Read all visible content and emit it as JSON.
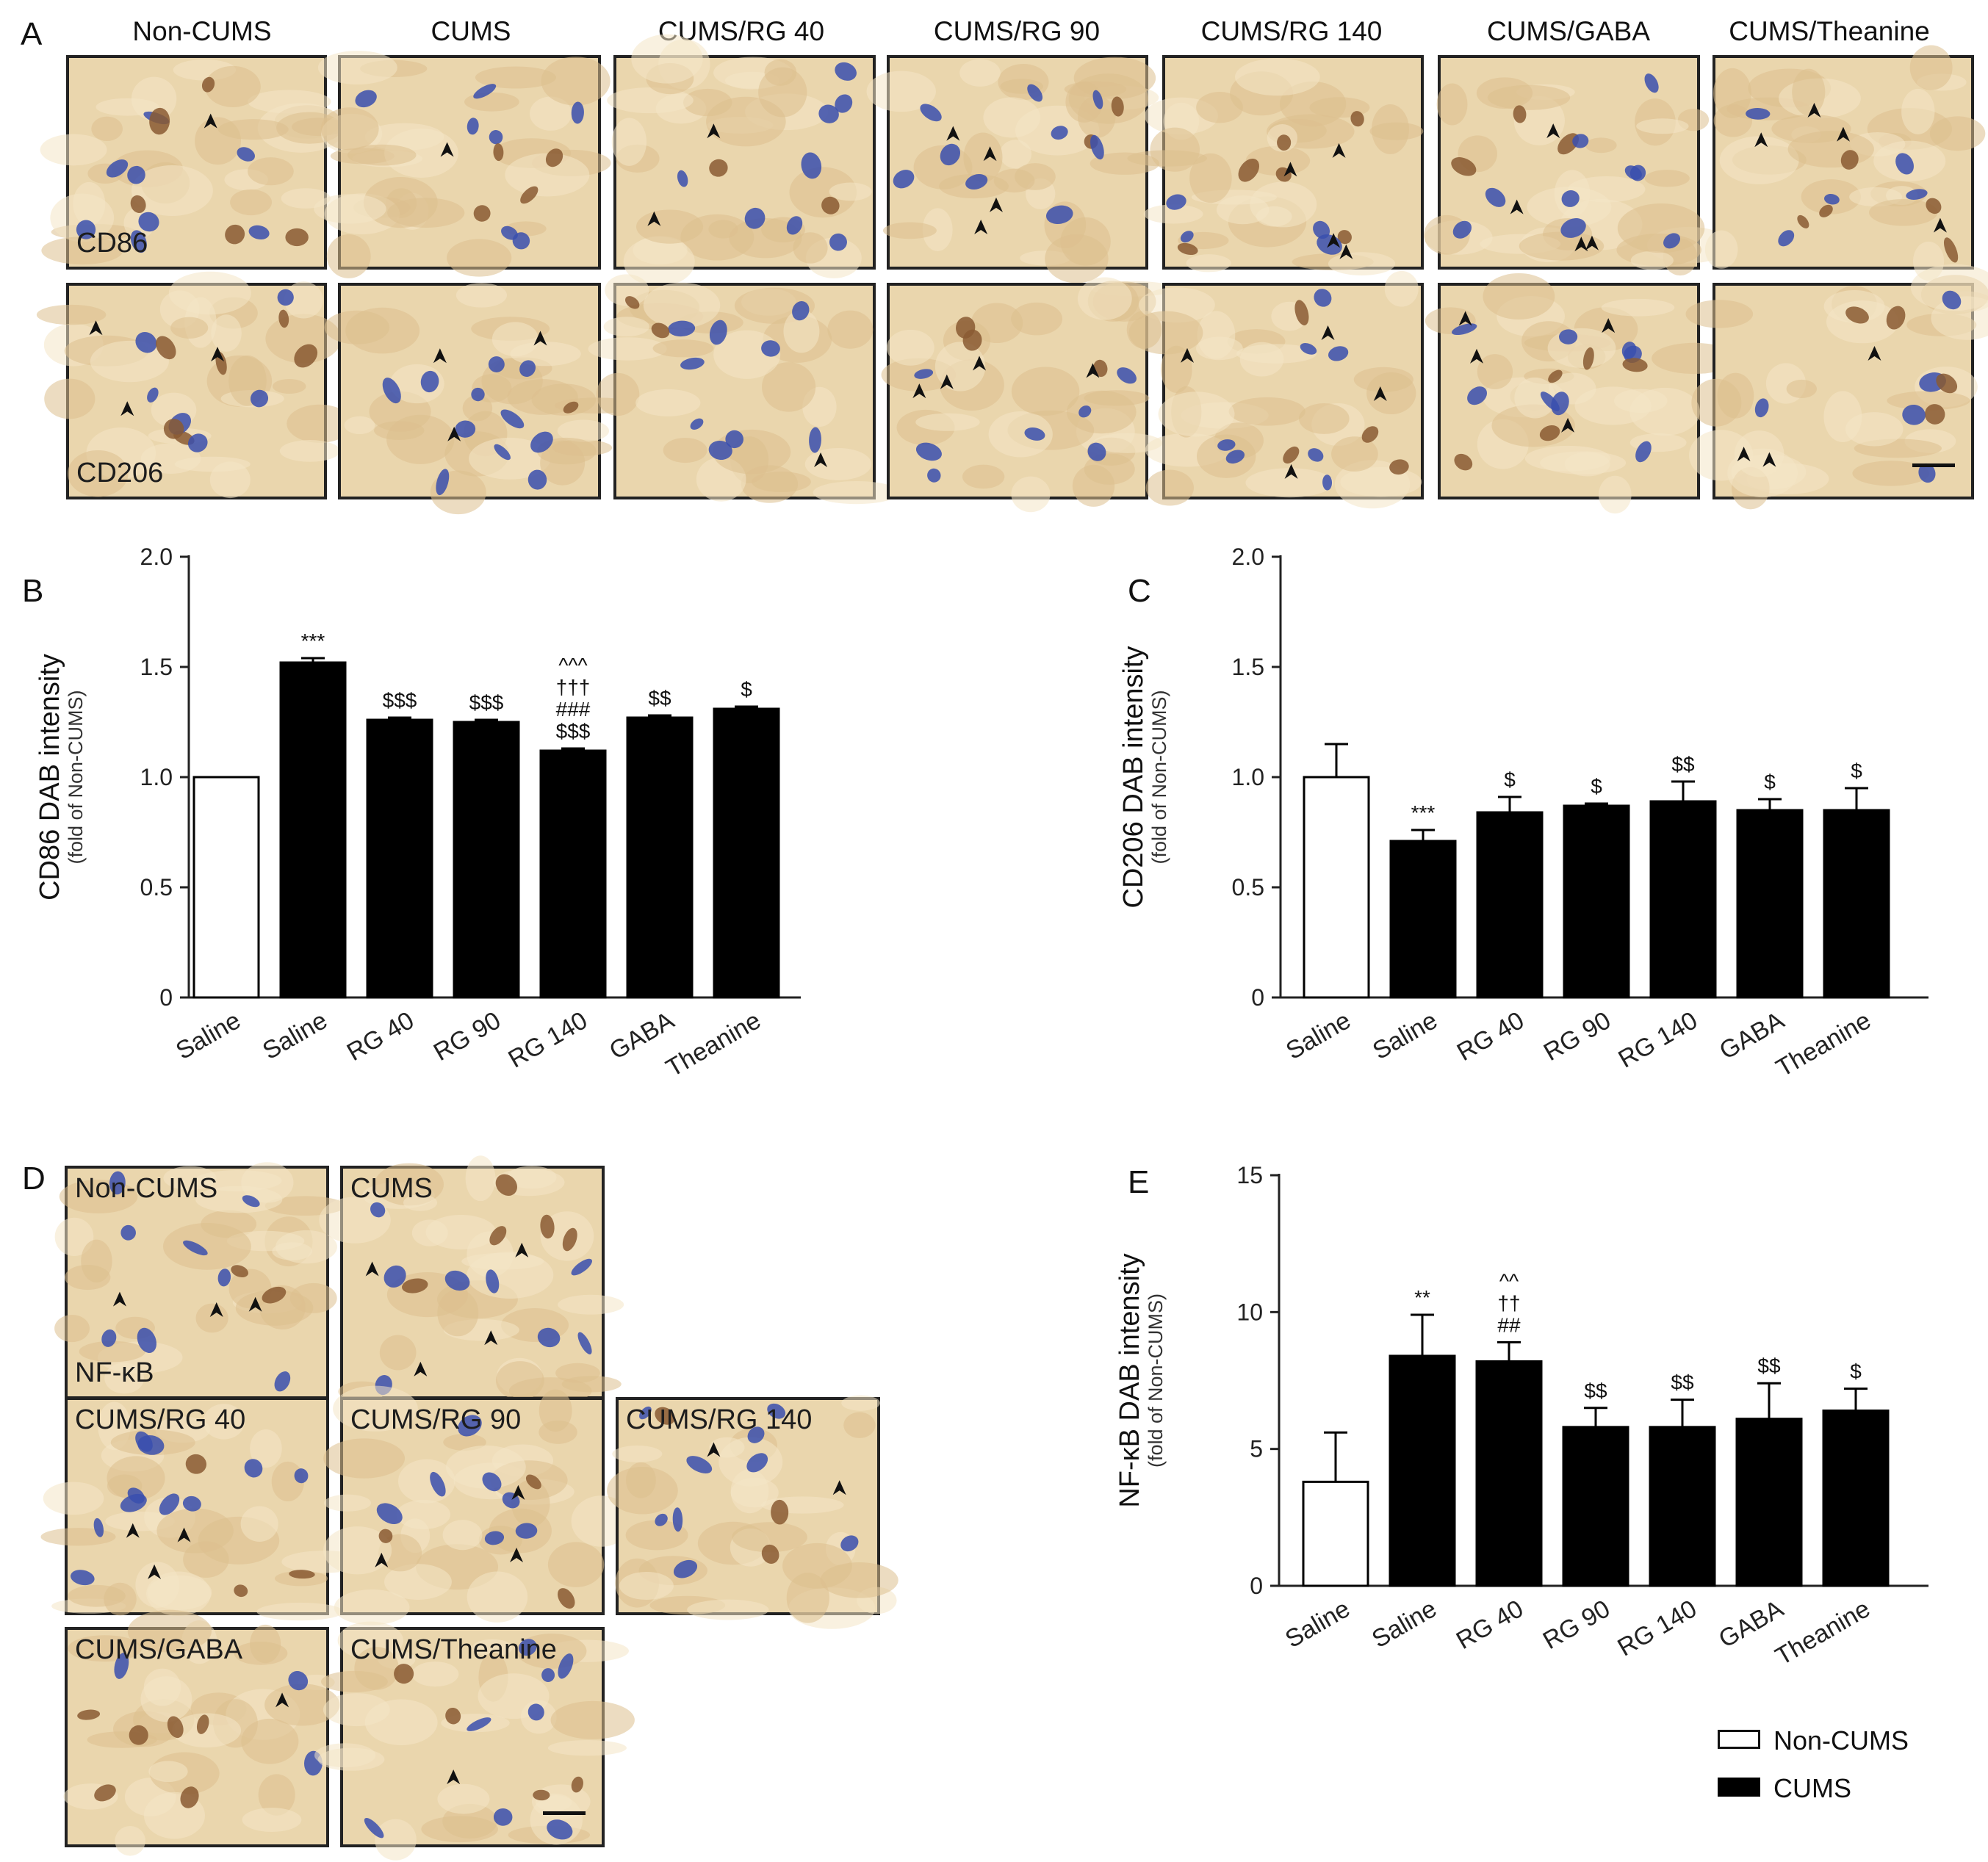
{
  "panel_a": {
    "letter": "A",
    "columns": [
      "Non-CUMS",
      "CUMS",
      "CUMS/RG 40",
      "CUMS/RG 90",
      "CUMS/RG 140",
      "CUMS/GABA",
      "CUMS/Theanine"
    ],
    "row_labels": [
      "CD86",
      "CD206"
    ]
  },
  "panel_d": {
    "letter": "D",
    "tiles": [
      "Non-CUMS",
      "CUMS",
      "CUMS/RG 40",
      "CUMS/RG 90",
      "CUMS/RG 140",
      "CUMS/GABA",
      "CUMS/Theanine"
    ],
    "stain_label": "NF-κB"
  },
  "legend": {
    "items": [
      {
        "label": "Non-CUMS",
        "color": "#ffffff"
      },
      {
        "label": "CUMS",
        "color": "#000000"
      }
    ]
  },
  "chart_data": [
    {
      "panel": "B",
      "type": "bar",
      "ylabel": "CD86 DAB intensity",
      "ylabel_sub": "(fold of Non-CUMS)",
      "ylim": [
        0,
        2.0
      ],
      "yticks": [
        "0",
        "0.5",
        "1.0",
        "1.5",
        "2.0"
      ],
      "ytick_values": [
        0,
        0.5,
        1.0,
        1.5,
        2.0
      ],
      "categories": [
        "Saline",
        "Saline",
        "RG 40",
        "RG 90",
        "RG 140",
        "GABA",
        "Theanine"
      ],
      "values": [
        1.0,
        1.52,
        1.26,
        1.25,
        1.12,
        1.27,
        1.31
      ],
      "errors": [
        0.0,
        0.02,
        0.01,
        0.01,
        0.01,
        0.01,
        0.01
      ],
      "groups": [
        "Non-CUMS",
        "CUMS",
        "CUMS",
        "CUMS",
        "CUMS",
        "CUMS",
        "CUMS"
      ],
      "annotations": [
        [],
        [
          "***"
        ],
        [
          "$$$"
        ],
        [
          "$$$"
        ],
        [
          "^^^",
          "†††",
          "###",
          "$$$"
        ],
        [
          "$$"
        ],
        [
          "$"
        ]
      ]
    },
    {
      "panel": "C",
      "type": "bar",
      "ylabel": "CD206 DAB intensity",
      "ylabel_sub": "(fold of Non-CUMS)",
      "ylim": [
        0,
        2.0
      ],
      "yticks": [
        "0",
        "0.5",
        "1.0",
        "1.5",
        "2.0"
      ],
      "ytick_values": [
        0,
        0.5,
        1.0,
        1.5,
        2.0
      ],
      "categories": [
        "Saline",
        "Saline",
        "RG 40",
        "RG 90",
        "RG 140",
        "GABA",
        "Theanine"
      ],
      "values": [
        1.0,
        0.71,
        0.84,
        0.87,
        0.89,
        0.85,
        0.85
      ],
      "errors": [
        0.15,
        0.05,
        0.07,
        0.01,
        0.09,
        0.05,
        0.1
      ],
      "groups": [
        "Non-CUMS",
        "CUMS",
        "CUMS",
        "CUMS",
        "CUMS",
        "CUMS",
        "CUMS"
      ],
      "annotations": [
        [],
        [
          "***"
        ],
        [
          "$"
        ],
        [
          "$"
        ],
        [
          "$$"
        ],
        [
          "$"
        ],
        [
          "$"
        ]
      ]
    },
    {
      "panel": "E",
      "type": "bar",
      "ylabel": "NF-κB DAB intensity",
      "ylabel_sub": "(fold of Non-CUMS)",
      "ylim": [
        0,
        15
      ],
      "yticks": [
        "0",
        "5",
        "10",
        "15"
      ],
      "ytick_values": [
        0,
        5,
        10,
        15
      ],
      "categories": [
        "Saline",
        "Saline",
        "RG 40",
        "RG 90",
        "RG 140",
        "GABA",
        "Theanine"
      ],
      "values": [
        3.8,
        8.4,
        8.2,
        5.8,
        5.8,
        6.1,
        6.4
      ],
      "errors": [
        1.8,
        1.5,
        0.7,
        0.7,
        1.0,
        1.3,
        0.8
      ],
      "groups": [
        "Non-CUMS",
        "CUMS",
        "CUMS",
        "CUMS",
        "CUMS",
        "CUMS",
        "CUMS"
      ],
      "annotations": [
        [],
        [
          "**"
        ],
        [
          "^^",
          "††",
          "##"
        ],
        [
          "$$"
        ],
        [
          "$$"
        ],
        [
          "$$"
        ],
        [
          "$"
        ]
      ]
    }
  ]
}
